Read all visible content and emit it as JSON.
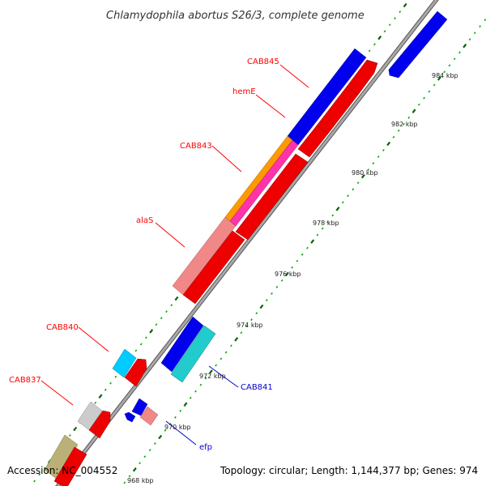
{
  "title": "Chlamydophila abortus S26/3, complete genome",
  "footer": {
    "accession": "Accession: NC_004552",
    "topology": "Topology: circular; Length: 1,144,377 bp; Genes: 974"
  },
  "colors": {
    "backbone": "#888888",
    "tick_minor": "#00aa00",
    "tick_major": "#006600",
    "label_forward": "#ff0000",
    "label_reverse": "#0000cc"
  },
  "tick_labels": [
    "968 kbp",
    "970 kbp",
    "972 kbp",
    "974 kbp",
    "976 kbp",
    "978 kbp",
    "980 kbp",
    "982 kbp",
    "984 kbp"
  ],
  "gene_labels": [
    {
      "text": "CAB845",
      "strand": "forward"
    },
    {
      "text": "hemE",
      "strand": "forward"
    },
    {
      "text": "CAB843",
      "strand": "forward"
    },
    {
      "text": "alaS",
      "strand": "forward"
    },
    {
      "text": "CAB840",
      "strand": "forward"
    },
    {
      "text": "CAB837",
      "strand": "forward"
    },
    {
      "text": "CAB841",
      "strand": "reverse"
    },
    {
      "text": "efp",
      "strand": "reverse"
    }
  ]
}
